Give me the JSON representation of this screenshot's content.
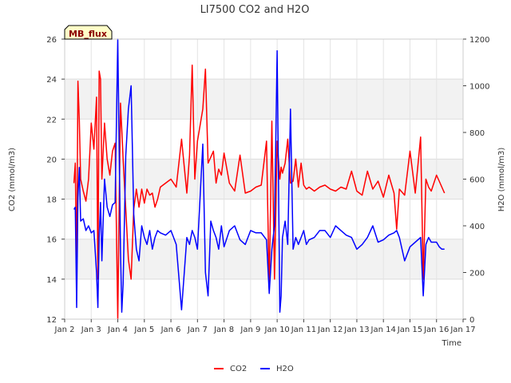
{
  "chart_data": {
    "type": "line",
    "title": "LI7500 CO2 and H2O",
    "xlabel": "Time",
    "ylabel": "CO2 (mmol/m3)",
    "y2label": "H2O (mmol/m3)",
    "xlim": [
      2,
      17
    ],
    "ylim": [
      12,
      26
    ],
    "y2lim": [
      0,
      1200
    ],
    "x_ticks": [
      2,
      3,
      4,
      5,
      6,
      7,
      8,
      9,
      10,
      11,
      12,
      13,
      14,
      15,
      16,
      17
    ],
    "x_tick_labels": [
      "Jan 2",
      "Jan 3",
      "Jan 4",
      "Jan 5",
      "Jan 6",
      "Jan 7",
      "Jan 8",
      "Jan 9",
      "Jan 10",
      "Jan 11",
      "Jan 12",
      "Jan 13",
      "Jan 14",
      "Jan 15",
      "Jan 16",
      "Jan 17"
    ],
    "y_ticks": [
      12,
      14,
      16,
      18,
      20,
      22,
      24,
      26
    ],
    "y_tick_labels": [
      "12",
      "14",
      "16",
      "18",
      "20",
      "22",
      "24",
      "26"
    ],
    "y2_ticks": [
      0,
      200,
      400,
      600,
      800,
      1000,
      1200
    ],
    "y2_tick_labels": [
      "0",
      "200",
      "400",
      "600",
      "800",
      "1000",
      "1200"
    ],
    "annotation": "MB_flux",
    "legend_position": "bottom-center",
    "series": [
      {
        "name": "CO2",
        "axis": "left",
        "color": "#ff0000",
        "x": [
          2.35,
          2.4,
          2.45,
          2.5,
          2.55,
          2.6,
          2.7,
          2.8,
          2.9,
          3.0,
          3.1,
          3.2,
          3.25,
          3.3,
          3.35,
          3.4,
          3.5,
          3.6,
          3.7,
          3.8,
          3.9,
          4.0,
          4.1,
          4.15,
          4.2,
          4.3,
          4.4,
          4.5,
          4.6,
          4.7,
          4.8,
          4.9,
          5.0,
          5.1,
          5.2,
          5.3,
          5.4,
          5.5,
          5.6,
          5.8,
          6.0,
          6.2,
          6.4,
          6.6,
          6.7,
          6.8,
          6.9,
          7.0,
          7.2,
          7.3,
          7.4,
          7.5,
          7.6,
          7.7,
          7.8,
          7.9,
          8.0,
          8.2,
          8.4,
          8.6,
          8.8,
          9.0,
          9.2,
          9.4,
          9.6,
          9.7,
          9.8,
          9.9,
          10.0,
          10.1,
          10.15,
          10.2,
          10.3,
          10.4,
          10.5,
          10.6,
          10.7,
          10.8,
          10.9,
          11.0,
          11.1,
          11.2,
          11.4,
          11.6,
          11.8,
          12.0,
          12.2,
          12.4,
          12.6,
          12.8,
          13.0,
          13.2,
          13.4,
          13.6,
          13.8,
          14.0,
          14.2,
          14.4,
          14.5,
          14.6,
          14.8,
          15.0,
          15.2,
          15.4,
          15.5,
          15.6,
          15.7,
          15.8,
          16.0,
          16.1,
          16.2,
          16.3
        ],
        "values": [
          18.8,
          19.8,
          14.0,
          23.9,
          22.0,
          19.0,
          18.4,
          17.9,
          19.0,
          21.8,
          20.5,
          23.1,
          14.0,
          24.4,
          24.0,
          19.0,
          21.8,
          20.0,
          19.2,
          20.4,
          20.8,
          12.0,
          22.8,
          21.5,
          20.0,
          17.5,
          15.0,
          14.0,
          17.5,
          18.5,
          17.6,
          18.5,
          17.8,
          18.5,
          18.2,
          18.3,
          17.6,
          18.0,
          18.6,
          18.8,
          19.0,
          18.6,
          21.0,
          18.3,
          20.2,
          24.7,
          19.0,
          20.9,
          22.5,
          24.5,
          19.8,
          20.1,
          20.4,
          18.8,
          19.5,
          19.2,
          20.3,
          18.8,
          18.4,
          20.2,
          18.3,
          18.4,
          18.6,
          18.7,
          20.9,
          13.5,
          21.9,
          14.0,
          20.9,
          19.0,
          19.6,
          19.3,
          19.8,
          21.0,
          18.8,
          18.9,
          20.0,
          18.6,
          19.8,
          18.7,
          18.5,
          18.6,
          18.4,
          18.6,
          18.7,
          18.5,
          18.4,
          18.6,
          18.5,
          19.4,
          18.4,
          18.2,
          19.4,
          18.5,
          18.9,
          18.1,
          19.2,
          18.3,
          16.5,
          18.5,
          18.2,
          20.4,
          18.3,
          21.1,
          14.0,
          19.0,
          18.6,
          18.4,
          19.2,
          18.9,
          18.6,
          18.3
        ]
      },
      {
        "name": "H2O",
        "axis": "right",
        "color": "#0000ff",
        "x": [
          2.35,
          2.4,
          2.45,
          2.5,
          2.55,
          2.6,
          2.7,
          2.8,
          2.9,
          3.0,
          3.1,
          3.2,
          3.25,
          3.3,
          3.35,
          3.4,
          3.5,
          3.6,
          3.7,
          3.8,
          3.9,
          4.0,
          4.1,
          4.15,
          4.2,
          4.3,
          4.4,
          4.5,
          4.6,
          4.7,
          4.8,
          4.9,
          5.0,
          5.1,
          5.2,
          5.3,
          5.4,
          5.5,
          5.6,
          5.8,
          6.0,
          6.2,
          6.4,
          6.6,
          6.7,
          6.8,
          6.9,
          7.0,
          7.2,
          7.3,
          7.4,
          7.5,
          7.6,
          7.7,
          7.8,
          7.9,
          8.0,
          8.2,
          8.4,
          8.6,
          8.8,
          9.0,
          9.2,
          9.4,
          9.6,
          9.7,
          9.8,
          9.9,
          10.0,
          10.1,
          10.15,
          10.2,
          10.3,
          10.4,
          10.5,
          10.6,
          10.7,
          10.8,
          10.9,
          11.0,
          11.1,
          11.2,
          11.4,
          11.6,
          11.8,
          12.0,
          12.2,
          12.4,
          12.6,
          12.8,
          13.0,
          13.2,
          13.4,
          13.6,
          13.8,
          14.0,
          14.2,
          14.4,
          14.5,
          14.6,
          14.8,
          15.0,
          15.2,
          15.4,
          15.5,
          15.6,
          15.7,
          15.8,
          16.0,
          16.1,
          16.2,
          16.3
        ],
        "values": [
          470,
          480,
          50,
          520,
          650,
          420,
          430,
          380,
          400,
          370,
          380,
          200,
          50,
          350,
          500,
          250,
          600,
          480,
          440,
          490,
          500,
          1200,
          300,
          30,
          150,
          700,
          900,
          1000,
          450,
          300,
          250,
          400,
          350,
          320,
          380,
          300,
          350,
          380,
          370,
          360,
          380,
          320,
          40,
          350,
          320,
          380,
          350,
          300,
          750,
          200,
          100,
          420,
          380,
          350,
          300,
          400,
          310,
          380,
          400,
          340,
          320,
          380,
          370,
          370,
          340,
          110,
          300,
          400,
          1150,
          30,
          100,
          350,
          420,
          320,
          900,
          300,
          350,
          320,
          350,
          380,
          320,
          340,
          350,
          380,
          380,
          350,
          400,
          380,
          360,
          350,
          300,
          320,
          350,
          400,
          330,
          340,
          360,
          370,
          380,
          350,
          250,
          310,
          330,
          350,
          100,
          320,
          350,
          330,
          330,
          310,
          300,
          300
        ]
      }
    ]
  }
}
